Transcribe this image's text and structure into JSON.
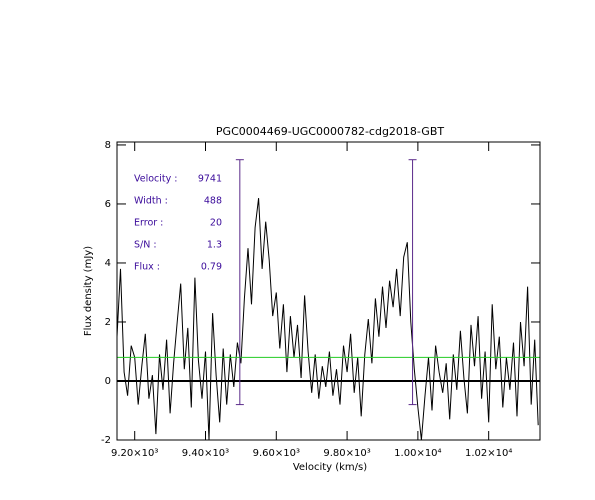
{
  "chart_data": {
    "type": "line",
    "title": "PGC0004469-UGC0000782-cdg2018-GBT",
    "x_label": "Velocity (km/s)",
    "y_label": "Flux density (mJy)",
    "xlim": [
      9150,
      10345
    ],
    "ylim": [
      -2,
      8.1
    ],
    "xticks": [
      {
        "value": 9200,
        "label": "9.20×10³"
      },
      {
        "value": 9400,
        "label": "9.40×10³"
      },
      {
        "value": 9600,
        "label": "9.60×10³"
      },
      {
        "value": 9800,
        "label": "9.80×10³"
      },
      {
        "value": 10000,
        "label": "1.00×10⁴"
      },
      {
        "value": 10200,
        "label": "1.02×10⁴"
      }
    ],
    "yticks": [
      -2,
      0,
      2,
      4,
      6,
      8
    ],
    "color": "#000000",
    "reference_line": {
      "value": 0.8,
      "color": "#22cc22"
    },
    "markers": {
      "x": [
        9497,
        9985
      ],
      "y": [
        -0.8,
        7.5
      ],
      "color": "#5a2a8a"
    },
    "annotations": [
      {
        "label": "Velocity :",
        "value": 9741
      },
      {
        "label": "Width :",
        "value": 488
      },
      {
        "label": "Error :",
        "value": 20
      },
      {
        "label": "S/N :",
        "value": 1.3
      },
      {
        "label": "Flux :",
        "value": 0.79
      }
    ],
    "x": [
      9150,
      9160,
      9170,
      9180,
      9190,
      9200,
      9210,
      9220,
      9230,
      9240,
      9250,
      9260,
      9270,
      9280,
      9290,
      9300,
      9310,
      9320,
      9330,
      9340,
      9350,
      9360,
      9370,
      9380,
      9390,
      9400,
      9410,
      9420,
      9430,
      9440,
      9450,
      9460,
      9470,
      9480,
      9490,
      9500,
      9510,
      9520,
      9530,
      9540,
      9550,
      9560,
      9570,
      9580,
      9590,
      9600,
      9610,
      9620,
      9630,
      9640,
      9650,
      9660,
      9670,
      9680,
      9690,
      9700,
      9710,
      9720,
      9730,
      9740,
      9750,
      9760,
      9770,
      9780,
      9790,
      9800,
      9810,
      9820,
      9830,
      9840,
      9850,
      9860,
      9870,
      9880,
      9890,
      9900,
      9910,
      9920,
      9930,
      9940,
      9950,
      9960,
      9970,
      9980,
      9990,
      10000,
      10010,
      10020,
      10030,
      10040,
      10050,
      10060,
      10070,
      10080,
      10090,
      10100,
      10110,
      10120,
      10130,
      10140,
      10150,
      10160,
      10170,
      10180,
      10190,
      10200,
      10210,
      10220,
      10230,
      10240,
      10250,
      10260,
      10270,
      10280,
      10290,
      10300,
      10310,
      10320,
      10330,
      10340
    ],
    "values": [
      1.5,
      3.8,
      0.3,
      -0.5,
      1.2,
      0.8,
      -0.8,
      0.5,
      1.6,
      -0.6,
      0.2,
      -1.8,
      0.9,
      -0.3,
      1.4,
      -1.1,
      0.6,
      2.0,
      3.3,
      0.4,
      1.8,
      -0.9,
      3.5,
      0.7,
      -0.6,
      1.0,
      -2.0,
      2.3,
      0.2,
      -1.4,
      1.1,
      -0.8,
      0.9,
      -0.2,
      1.3,
      0.6,
      2.8,
      4.5,
      2.6,
      5.2,
      6.2,
      3.8,
      5.4,
      4.1,
      2.2,
      3.0,
      1.1,
      2.6,
      0.3,
      2.2,
      0.8,
      1.9,
      0.1,
      2.9,
      1.0,
      -0.4,
      0.9,
      -0.6,
      0.5,
      -0.2,
      1.0,
      -0.5,
      0.4,
      -0.8,
      1.2,
      0.3,
      1.6,
      -0.4,
      0.8,
      -1.2,
      0.9,
      2.1,
      0.6,
      2.8,
      1.5,
      3.2,
      1.8,
      3.4,
      2.5,
      3.8,
      2.2,
      4.2,
      4.7,
      2.0,
      0.4,
      -0.9,
      -2.0,
      -0.5,
      0.8,
      -1.0,
      1.2,
      0.3,
      -0.4,
      0.6,
      -1.3,
      0.9,
      -0.3,
      1.7,
      0.1,
      -1.1,
      1.9,
      0.5,
      2.2,
      -0.6,
      1.0,
      -1.4,
      2.6,
      0.4,
      1.5,
      -0.9,
      0.8,
      -0.3,
      1.3,
      -1.2,
      2.0,
      0.5,
      3.2,
      -0.8,
      1.4,
      -1.5
    ]
  }
}
